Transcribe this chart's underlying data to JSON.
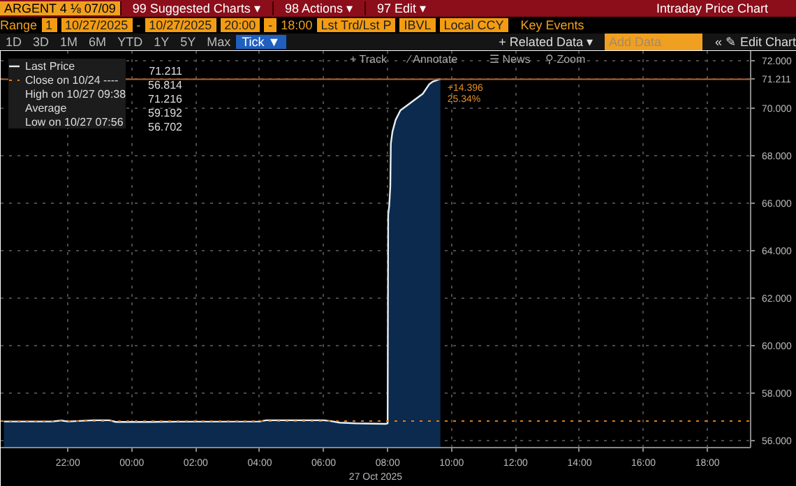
{
  "chart_data": {
    "type": "area",
    "title": "Intraday Price Chart",
    "xlabel": "27 Oct 2025",
    "x": [
      "2025-10-26T20:00",
      "2025-10-26T21:30",
      "2025-10-26T21:48",
      "2025-10-26T22:00",
      "2025-10-26T22:48",
      "2025-10-26T23:18",
      "2025-10-26T23:30",
      "2025-10-27T00:30",
      "2025-10-27T01:00",
      "2025-10-27T04:00",
      "2025-10-27T04:12",
      "2025-10-27T06:00",
      "2025-10-27T06:12",
      "2025-10-27T06:30",
      "2025-10-27T07:00",
      "2025-10-27T07:56",
      "2025-10-27T08:00",
      "2025-10-27T08:01",
      "2025-10-27T08:03",
      "2025-10-27T08:05",
      "2025-10-27T08:06",
      "2025-10-27T08:09",
      "2025-10-27T08:15",
      "2025-10-27T08:24",
      "2025-10-27T08:36",
      "2025-10-27T08:54",
      "2025-10-27T09:06",
      "2025-10-27T09:18",
      "2025-10-27T09:24",
      "2025-10-27T09:38",
      "2025-10-27T09:39"
    ],
    "series": [
      {
        "name": "Last Price",
        "color": "#e8eef4",
        "values": [
          56.8,
          56.8,
          56.84,
          56.8,
          56.85,
          56.85,
          56.78,
          56.78,
          56.79,
          56.8,
          56.85,
          56.85,
          56.82,
          56.75,
          56.72,
          56.7,
          56.72,
          65.5,
          65.9,
          66.7,
          68.5,
          69.0,
          69.5,
          69.9,
          70.1,
          70.4,
          70.6,
          71.0,
          71.1,
          71.216,
          71.211
        ]
      }
    ],
    "xlim": [
      "2025-10-26T19:54",
      "2025-10-27T19:21"
    ],
    "ylim": [
      55.7,
      72.4
    ],
    "xticks": [
      {
        "value": "2025-10-26T22:00",
        "label": "22:00"
      },
      {
        "value": "2025-10-27T00:00",
        "label": "00:00"
      },
      {
        "value": "2025-10-27T02:00",
        "label": "02:00"
      },
      {
        "value": "2025-10-27T04:00",
        "label": "04:00"
      },
      {
        "value": "2025-10-27T06:00",
        "label": "06:00"
      },
      {
        "value": "2025-10-27T08:00",
        "label": "08:00"
      },
      {
        "value": "2025-10-27T10:00",
        "label": "10:00"
      },
      {
        "value": "2025-10-27T12:00",
        "label": "12:00"
      },
      {
        "value": "2025-10-27T14:00",
        "label": "14:00"
      },
      {
        "value": "2025-10-27T16:00",
        "label": "16:00"
      },
      {
        "value": "2025-10-27T18:00",
        "label": "18:00"
      }
    ],
    "yticks": [
      {
        "value": 56,
        "label": "56.000"
      },
      {
        "value": 58,
        "label": "58.000"
      },
      {
        "value": 60,
        "label": "60.000"
      },
      {
        "value": 62,
        "label": "62.000"
      },
      {
        "value": 64,
        "label": "64.000"
      },
      {
        "value": 66,
        "label": "66.000"
      },
      {
        "value": 68,
        "label": "68.000"
      },
      {
        "value": 70,
        "label": "70.000"
      },
      {
        "value": 71.211,
        "label": "71.211"
      },
      {
        "value": 72,
        "label": "72.000"
      }
    ],
    "ref_lines": [
      {
        "axis": "y",
        "value": 56.814,
        "label": "Close on 10/24 ----",
        "color": "#e07b1a",
        "line_style": "dotted"
      },
      {
        "axis": "y",
        "value": 71.211,
        "color": "#b8622a",
        "line_style": "solid"
      }
    ],
    "grid": true,
    "legend": "top left",
    "annotations": [
      "ARGENT 4 ⅛ 07/09",
      "99 Suggested Charts ▾",
      "98 Actions ▾",
      "97 Edit ▾",
      "Range",
      "1",
      "10/27/2025",
      "-",
      "10/27/2025",
      "20:00",
      "-",
      "18:00",
      "Lst Trd/Lst P",
      "IBVL",
      "Local CCY",
      "Key Events",
      "1D",
      "3D",
      "1M",
      "6M",
      "YTD",
      "1Y",
      "5Y",
      "Max",
      "Tick ▼",
      "+ Related Data ▾",
      "Add Data",
      "« ✎ Edit Chart",
      "+ Track",
      "⁄ Annotate",
      "☰ News",
      "⚲ Zoom",
      "71.211",
      "56.814",
      "High on 10/27 09:38",
      "71.216",
      "Average",
      "59.192",
      "Low on 10/27 07:56",
      "56.702",
      {
        "text": "+14.396",
        "x": "2025-10-27T09:39",
        "y": 71.211
      },
      {
        "text": "25.34%",
        "x": "2025-10-27T09:39",
        "y": 71.211
      }
    ]
  }
}
